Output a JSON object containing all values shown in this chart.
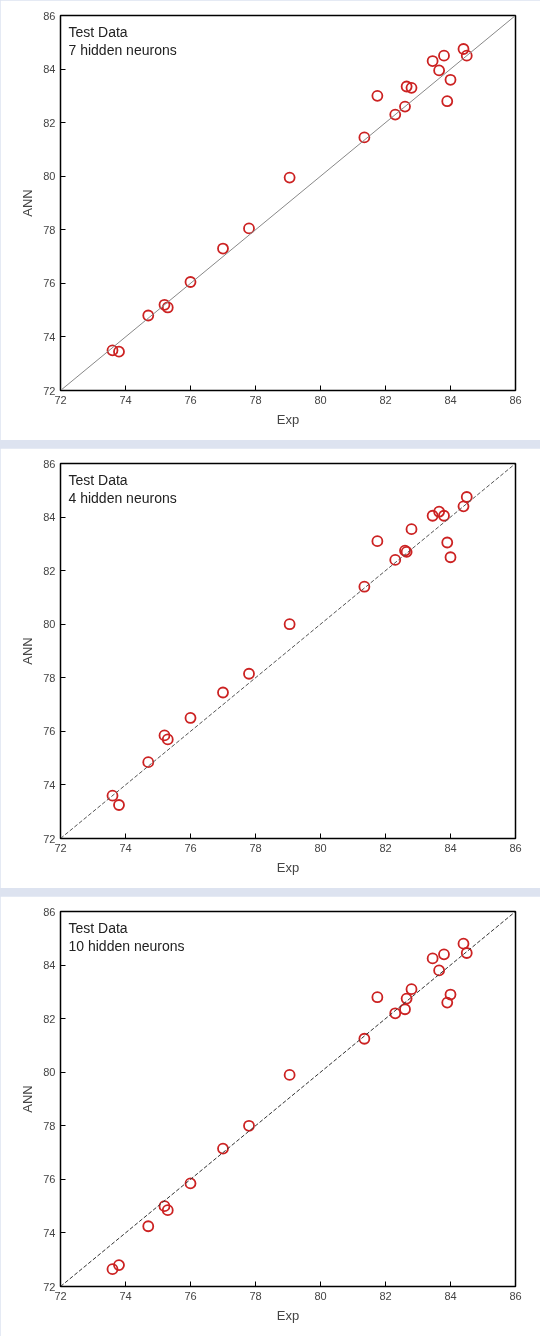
{
  "chart_data": [
    {
      "type": "scatter",
      "annotations": [
        "Test Data",
        "7 hidden neurons"
      ],
      "xlabel": "Exp",
      "ylabel": "ANN",
      "xlim": [
        72,
        86
      ],
      "ylim": [
        72,
        86
      ],
      "xticks": [
        72,
        74,
        76,
        78,
        80,
        82,
        84,
        86
      ],
      "yticks": [
        72,
        74,
        76,
        78,
        80,
        82,
        84,
        86
      ],
      "grid": false,
      "series": [
        {
          "marker": "circle",
          "color": "#cc2222",
          "x": [
            73.6,
            73.8,
            74.7,
            75.2,
            75.3,
            76.0,
            77.0,
            77.8,
            79.05,
            81.35,
            81.75,
            82.3,
            82.6,
            82.65,
            82.8,
            83.45,
            83.65,
            83.8,
            83.9,
            84.0,
            84.4,
            84.5
          ],
          "values": [
            73.5,
            73.45,
            74.8,
            75.2,
            75.1,
            76.05,
            77.3,
            78.05,
            79.95,
            81.45,
            83.0,
            82.3,
            82.6,
            83.35,
            83.3,
            84.3,
            83.95,
            84.5,
            82.8,
            83.6,
            84.75,
            84.5
          ]
        },
        {
          "type": "line",
          "color": "#888888",
          "line_style": "solid",
          "x": [
            72,
            86
          ],
          "values": [
            72,
            86
          ]
        }
      ]
    },
    {
      "type": "scatter",
      "annotations": [
        "Test Data",
        "4 hidden neurons"
      ],
      "xlabel": "Exp",
      "ylabel": "ANN",
      "xlim": [
        72,
        86
      ],
      "ylim": [
        72,
        86
      ],
      "xticks": [
        72,
        74,
        76,
        78,
        80,
        82,
        84,
        86
      ],
      "yticks": [
        72,
        74,
        76,
        78,
        80,
        82,
        84,
        86
      ],
      "grid": false,
      "series": [
        {
          "marker": "circle",
          "color": "#cc2222",
          "x": [
            73.6,
            73.8,
            74.7,
            75.2,
            75.3,
            76.0,
            77.0,
            77.8,
            79.05,
            81.35,
            81.75,
            82.3,
            82.6,
            82.65,
            82.8,
            83.45,
            83.65,
            83.8,
            83.9,
            84.0,
            84.4,
            84.5
          ],
          "values": [
            73.6,
            73.25,
            74.85,
            75.85,
            75.7,
            76.5,
            77.45,
            78.15,
            80.0,
            81.4,
            83.1,
            82.4,
            82.75,
            82.7,
            83.55,
            84.05,
            84.2,
            84.05,
            83.05,
            82.5,
            84.4,
            84.75
          ]
        },
        {
          "type": "line",
          "color": "#555555",
          "line_style": "dashed",
          "x": [
            72,
            86
          ],
          "values": [
            72,
            86
          ]
        }
      ]
    },
    {
      "type": "scatter",
      "annotations": [
        "Test Data",
        "10 hidden neurons"
      ],
      "xlabel": "Exp",
      "ylabel": "ANN",
      "xlim": [
        72,
        86
      ],
      "ylim": [
        72,
        86
      ],
      "xticks": [
        72,
        74,
        76,
        78,
        80,
        82,
        84,
        86
      ],
      "yticks": [
        72,
        74,
        76,
        78,
        80,
        82,
        84,
        86
      ],
      "grid": false,
      "series": [
        {
          "marker": "circle",
          "color": "#cc2222",
          "x": [
            73.6,
            73.8,
            74.7,
            75.2,
            75.3,
            76.0,
            77.0,
            77.8,
            79.05,
            81.35,
            81.75,
            82.3,
            82.6,
            82.65,
            82.8,
            83.45,
            83.65,
            83.8,
            83.9,
            84.0,
            84.4,
            84.5
          ],
          "values": [
            72.65,
            72.8,
            74.25,
            75.0,
            74.85,
            75.85,
            77.15,
            78.0,
            79.9,
            81.25,
            82.8,
            82.2,
            82.35,
            82.75,
            83.1,
            84.25,
            83.8,
            84.4,
            82.6,
            82.9,
            84.8,
            84.45
          ]
        },
        {
          "type": "line",
          "color": "#333333",
          "line_style": "dashed",
          "x": [
            72,
            86
          ],
          "values": [
            72,
            86
          ]
        }
      ]
    }
  ]
}
